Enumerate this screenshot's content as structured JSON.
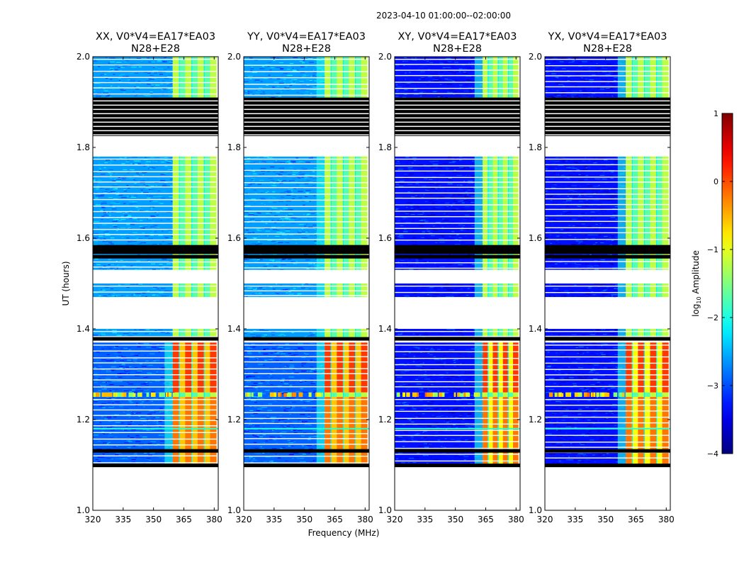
{
  "chart_data": {
    "type": "heatmap",
    "suptitle": "2023-04-10  01:00:00--02:00:00",
    "xlabel": "Frequency (MHz)",
    "ylabel": "UT (hours)",
    "xlim": [
      320,
      382
    ],
    "ylim": [
      1.0,
      2.0
    ],
    "xticks": [
      320,
      335,
      350,
      365,
      380
    ],
    "yticks": [
      1.0,
      1.2,
      1.4,
      1.6,
      1.8,
      2.0
    ],
    "ytick_labels": [
      "1.0",
      "1.2",
      "1.4",
      "1.6",
      "1.8",
      "2.0"
    ],
    "panels": [
      {
        "title_line1": "XX, V0*V4=EA17*EA03",
        "title_line2": "N28+E28",
        "band_start_mhz": 359.5,
        "edge_glow": false,
        "xpol": false
      },
      {
        "title_line1": "YY, V0*V4=EA17*EA03",
        "title_line2": "N28+E28",
        "band_start_mhz": 360.0,
        "edge_glow": true,
        "xpol": false
      },
      {
        "title_line1": "XY, V0*V4=EA17*EA03",
        "title_line2": "N28+E28",
        "band_start_mhz": 363.5,
        "edge_glow": true,
        "xpol": true
      },
      {
        "title_line1": "YX, V0*V4=EA17*EA03",
        "title_line2": "N28+E28",
        "band_start_mhz": 360.0,
        "edge_glow": true,
        "xpol": true
      }
    ],
    "time_blocks": [
      {
        "from": 1.1,
        "to": 1.25,
        "level": "high",
        "note": "band strong"
      },
      {
        "from": 1.25,
        "to": 1.26,
        "level": "rfi",
        "note": "RFI burst row"
      },
      {
        "from": 1.26,
        "to": 1.37,
        "level": "high",
        "note": "band strongest"
      },
      {
        "from": 1.38,
        "to": 1.4,
        "level": "mid",
        "note": ""
      },
      {
        "from": 1.47,
        "to": 1.5,
        "level": "mid",
        "note": ""
      },
      {
        "from": 1.53,
        "to": 1.565,
        "level": "mid",
        "note": ""
      },
      {
        "from": 1.58,
        "to": 1.78,
        "level": "mid",
        "note": ""
      },
      {
        "from": 1.91,
        "to": 2.0,
        "level": "mid",
        "note": ""
      }
    ],
    "flagged_gaps": [
      {
        "from": 1.0,
        "to": 1.1,
        "style": "blank"
      },
      {
        "from": 1.37,
        "to": 1.38,
        "style": "blank"
      },
      {
        "from": 1.4,
        "to": 1.47,
        "style": "blank"
      },
      {
        "from": 1.5,
        "to": 1.53,
        "style": "blank"
      },
      {
        "from": 1.565,
        "to": 1.58,
        "style": "black"
      },
      {
        "from": 1.78,
        "to": 1.825,
        "style": "blank"
      },
      {
        "from": 1.825,
        "to": 1.91,
        "style": "black-striped"
      }
    ],
    "horizontal_black_lines": [
      1.099,
      1.131,
      1.378,
      1.559,
      1.581
    ],
    "colorbar": {
      "label": "log10 Amplitude",
      "label_main": "log",
      "label_sub": "10",
      "label_rest": " Amplitude",
      "range": [
        -4,
        1
      ],
      "ticks": [
        1,
        0,
        -1,
        -2,
        -3,
        -4
      ],
      "tick_labels": [
        "1",
        "0",
        "−1",
        "−2",
        "−3",
        "−4"
      ],
      "colormap": "jet"
    }
  }
}
